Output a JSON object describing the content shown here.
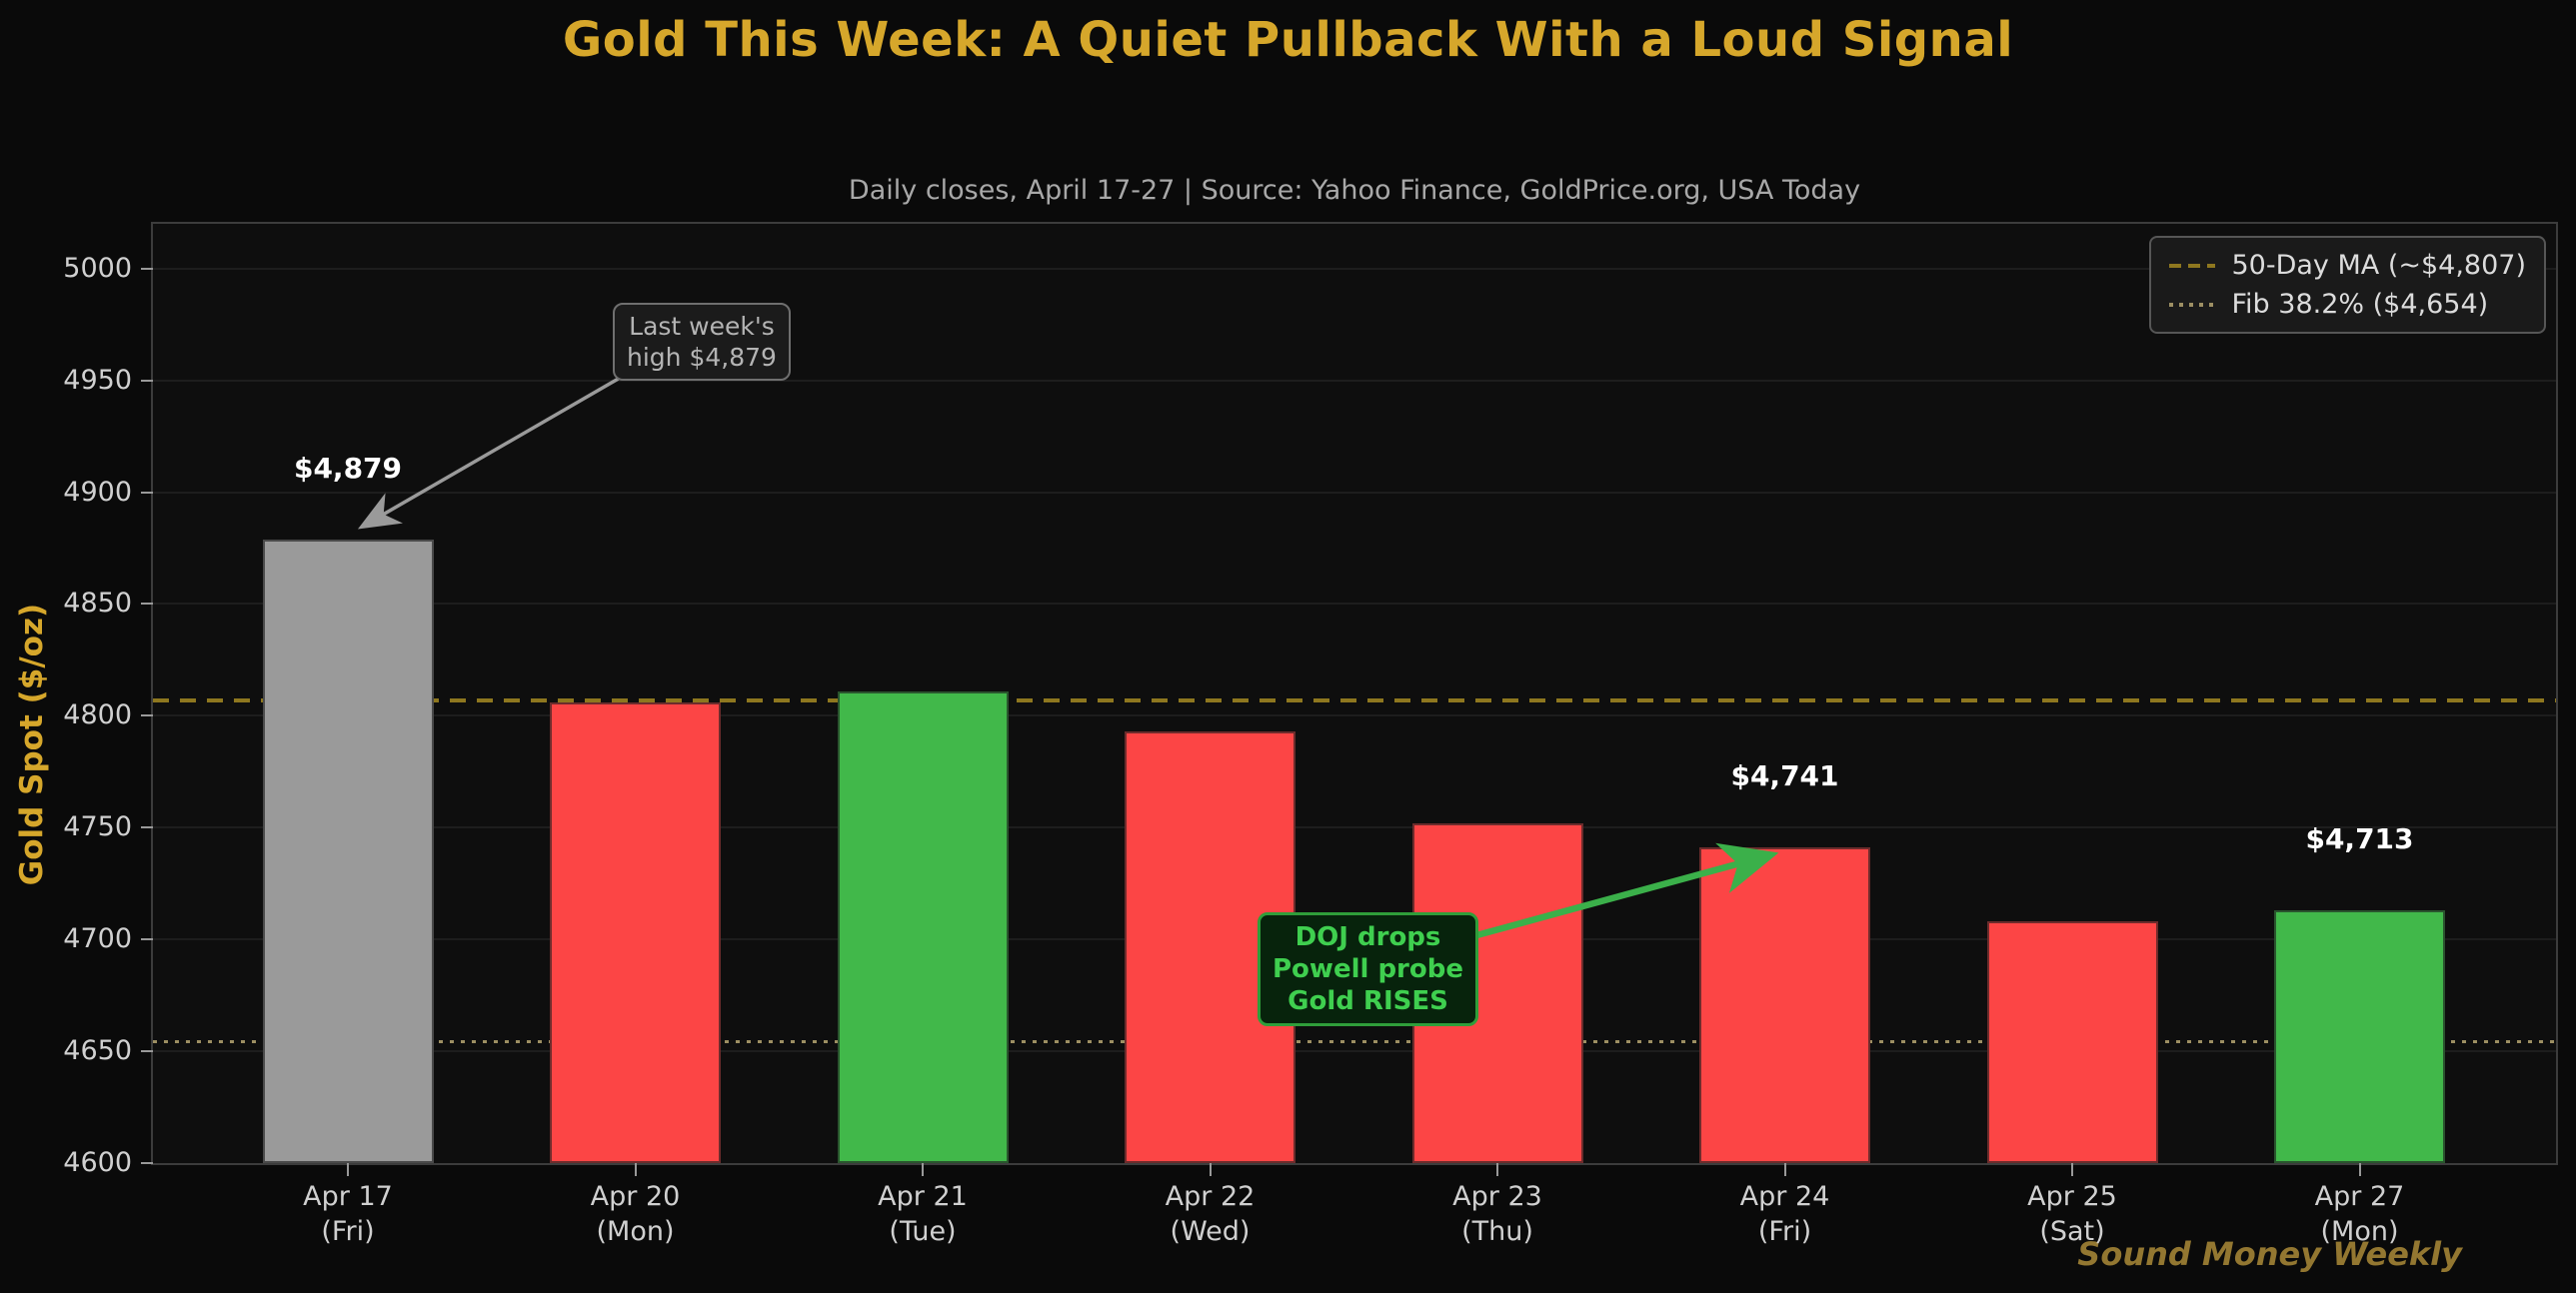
{
  "title": "Gold This Week: A Quiet Pullback With a Loud Signal",
  "subtitle": "Daily closes, April 17-27  |  Source: Yahoo Finance, GoldPrice.org, USA Today",
  "watermark": "Sound Money Weekly",
  "chart_data": {
    "type": "bar",
    "title": "Gold This Week: A Quiet Pullback With a Loud Signal",
    "xlabel": "",
    "ylabel": "Gold Spot ($/oz)",
    "ylim": [
      4600,
      5020
    ],
    "yticks": [
      4600,
      4650,
      4700,
      4750,
      4800,
      4850,
      4900,
      4950,
      5000
    ],
    "grid": true,
    "legend_position": "top-right",
    "categories": [
      {
        "label": "Apr 17",
        "sub": "(Fri)"
      },
      {
        "label": "Apr 20",
        "sub": "(Mon)"
      },
      {
        "label": "Apr 21",
        "sub": "(Tue)"
      },
      {
        "label": "Apr 22",
        "sub": "(Wed)"
      },
      {
        "label": "Apr 23",
        "sub": "(Thu)"
      },
      {
        "label": "Apr 24",
        "sub": "(Fri)"
      },
      {
        "label": "Apr 25",
        "sub": "(Sat)"
      },
      {
        "label": "Apr 27",
        "sub": "(Mon)"
      }
    ],
    "values": [
      4879,
      4806,
      4811,
      4793,
      4752,
      4741,
      4708,
      4713
    ],
    "bar_colors": [
      "#9a9a9a",
      "#fc4545",
      "#41b84a",
      "#fc4545",
      "#fc4545",
      "#fc4545",
      "#fc4545",
      "#41b84a"
    ],
    "value_labels": [
      {
        "index": 0,
        "text": "$4,879"
      },
      {
        "index": 5,
        "text": "$4,741"
      },
      {
        "index": 7,
        "text": "$4,713"
      }
    ],
    "reference_lines": [
      {
        "label": "50-Day MA (~$4,807)",
        "value": 4807,
        "style": "dashed",
        "color": "#8e771f"
      },
      {
        "label": "Fib 38.2% ($4,654)",
        "value": 4654,
        "style": "dotted",
        "color": "#9d8f63"
      }
    ]
  },
  "annotations": {
    "high": {
      "line1": "Last week's",
      "line2": "high $4,879"
    },
    "doj": {
      "line1": "DOJ drops",
      "line2": "Powell probe",
      "line3": "Gold RISES"
    }
  },
  "colors": {
    "background": "#0a0a0a",
    "title_gold": "#d6a72b",
    "bar_red": "#fc4545",
    "bar_green": "#41b84a",
    "bar_gray": "#9a9a9a",
    "ma_line": "#8e771f",
    "fib_line": "#9d8f63",
    "annotation_green": "#3fcf4f"
  }
}
